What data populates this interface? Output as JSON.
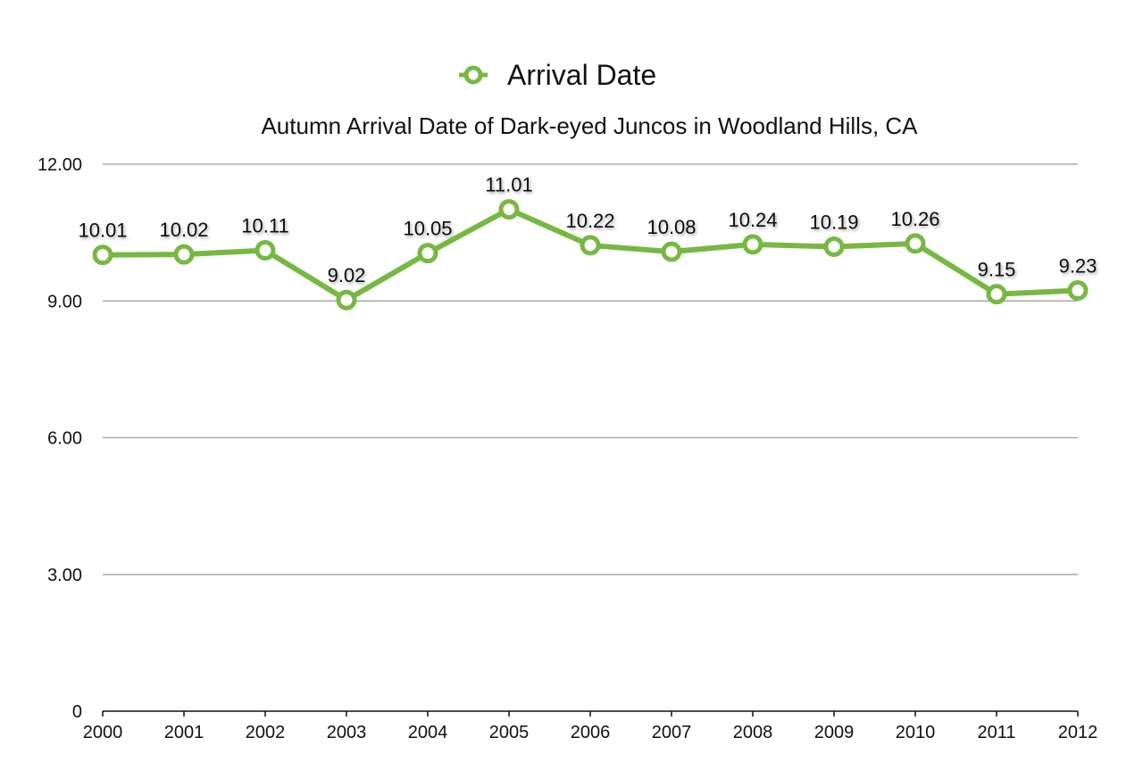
{
  "colors": {
    "series": "#77b843",
    "marker_fill": "#ffffff",
    "grid": "#a8a8a8",
    "axis": "#111111"
  },
  "chart_data": {
    "type": "line",
    "title": "Autumn Arrival Date of Dark-eyed Juncos in Woodland Hills, CA",
    "xlabel": "",
    "ylabel": "",
    "x": [
      "2000",
      "2001",
      "2002",
      "2003",
      "2004",
      "2005",
      "2006",
      "2007",
      "2008",
      "2009",
      "2010",
      "2011",
      "2012"
    ],
    "series": [
      {
        "name": "Arrival Date",
        "values": [
          10.01,
          10.02,
          10.11,
          9.02,
          10.05,
          11.01,
          10.22,
          10.08,
          10.24,
          10.19,
          10.26,
          9.15,
          9.23
        ],
        "labels": [
          "10.01",
          "10.02",
          "10.11",
          "9.02",
          "10.05",
          "11.01",
          "10.22",
          "10.08",
          "10.24",
          "10.19",
          "10.26",
          "9.15",
          "9.23"
        ]
      }
    ],
    "ylim": [
      0,
      12
    ],
    "yticks": [
      0,
      3,
      6,
      9,
      12
    ],
    "ytick_labels": [
      "0",
      "3.00",
      "6.00",
      "9.00",
      "12.00"
    ],
    "grid": true,
    "legend_position": "top-center"
  }
}
